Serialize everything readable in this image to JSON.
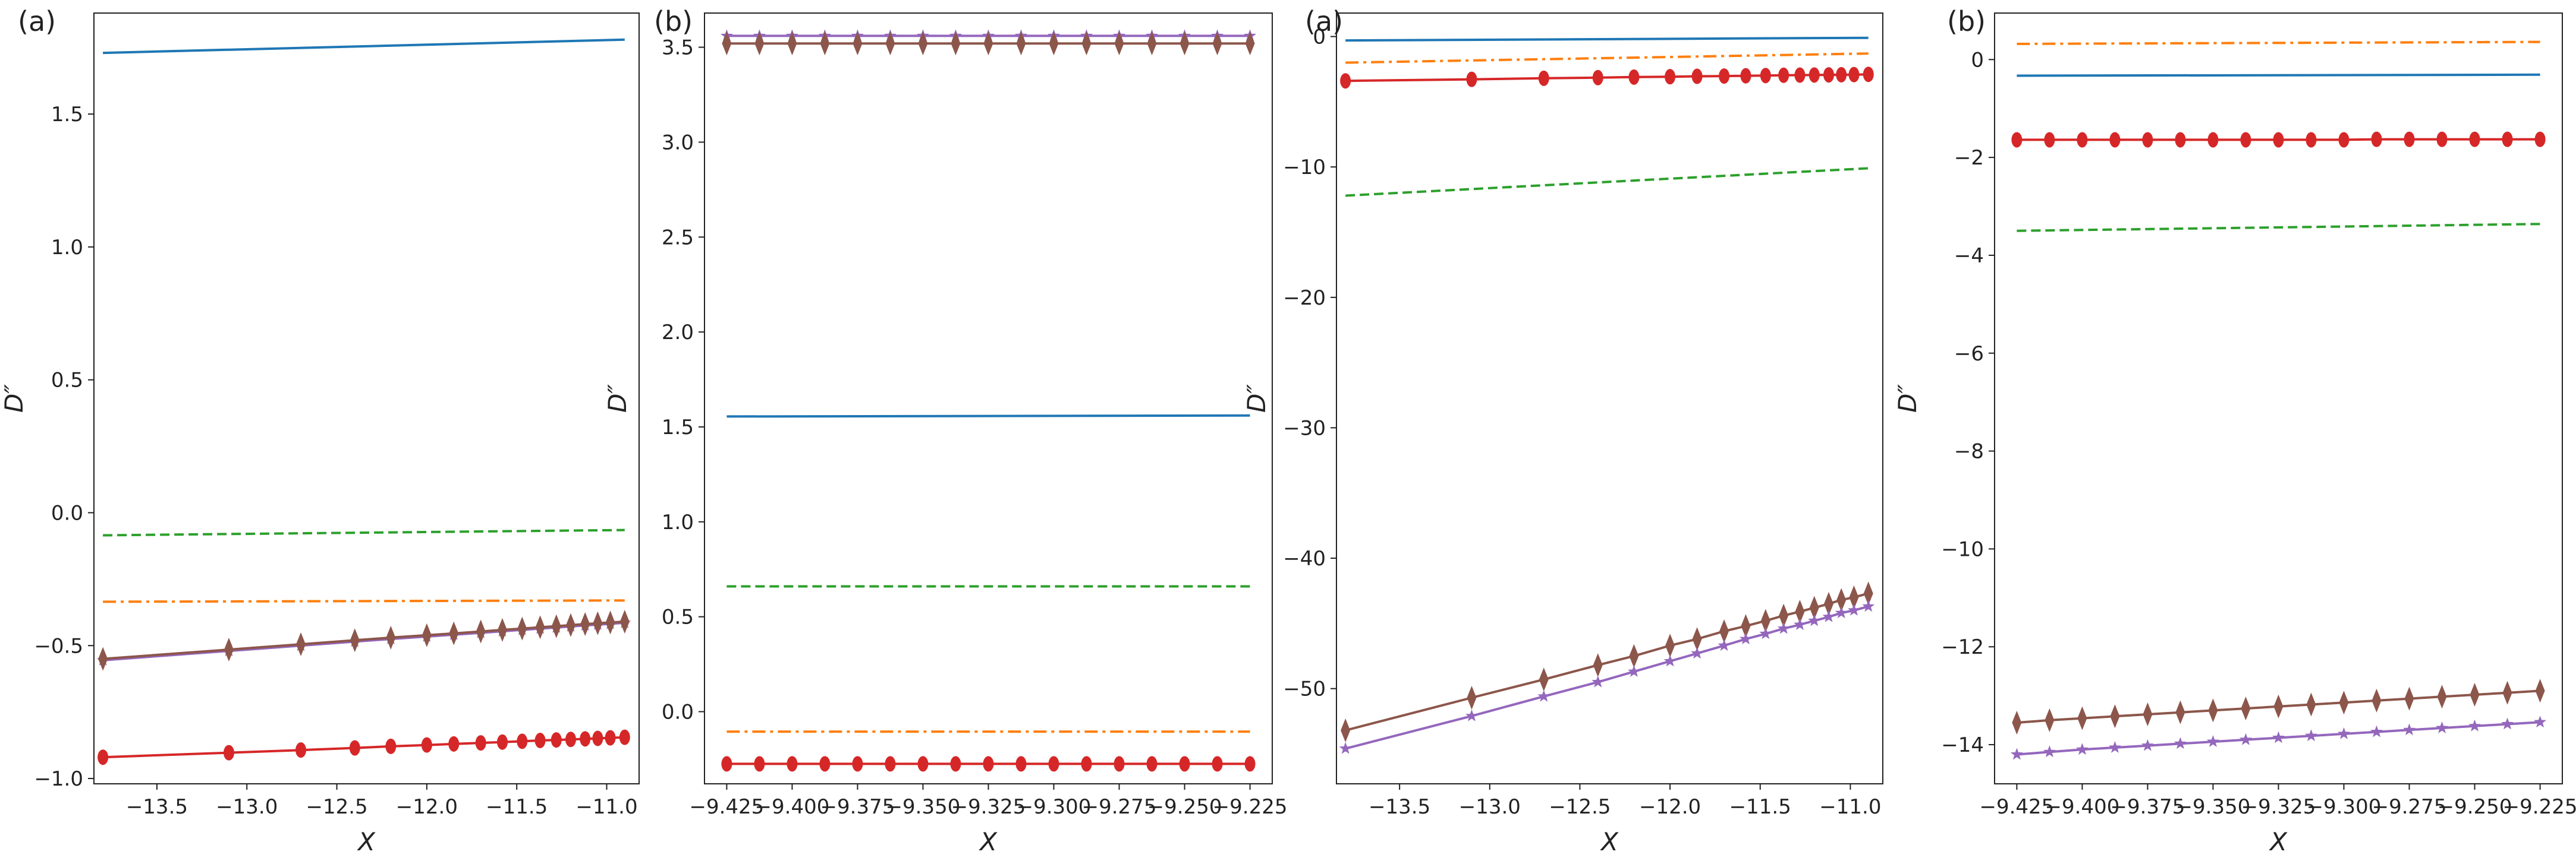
{
  "colors": {
    "blue": "#1f77b4",
    "orange": "#ff7f0e",
    "green": "#2ca02c",
    "red": "#d62728",
    "purple": "#9467bd",
    "brown": "#8c564b"
  },
  "chart_data": [
    {
      "type": "line",
      "panel_label": "(a)",
      "xlabel": "X",
      "ylabel": "D″",
      "xlim": [
        -13.85,
        -10.82
      ],
      "ylim": [
        -1.02,
        1.88
      ],
      "xticks": [
        -13.5,
        -13.0,
        -12.5,
        -12.0,
        -11.5,
        -11.0
      ],
      "xtick_labels": [
        "−13.5",
        "−13.0",
        "−12.5",
        "−12.0",
        "−11.5",
        "−11.0"
      ],
      "yticks": [
        -1.0,
        -0.5,
        0.0,
        0.5,
        1.0,
        1.5
      ],
      "ytick_labels": [
        "−1.0",
        "−0.5",
        "0.0",
        "0.5",
        "1.0",
        "1.5"
      ],
      "series": [
        {
          "name": "blue solid",
          "color": "blue",
          "style": "solid",
          "marker": "none",
          "x": [
            -13.8,
            -10.9
          ],
          "y": [
            1.73,
            1.78
          ]
        },
        {
          "name": "green dashed",
          "color": "green",
          "style": "dashed",
          "marker": "none",
          "x": [
            -13.8,
            -10.9
          ],
          "y": [
            -0.085,
            -0.065
          ]
        },
        {
          "name": "orange dashdot",
          "color": "orange",
          "style": "dashdot",
          "marker": "none",
          "x": [
            -13.8,
            -10.9
          ],
          "y": [
            -0.335,
            -0.33
          ]
        },
        {
          "name": "purple stars",
          "color": "purple",
          "style": "solid",
          "marker": "star",
          "x": [
            -13.8,
            -13.1,
            -12.7,
            -12.4,
            -12.2,
            -12.0,
            -11.85,
            -11.7,
            -11.58,
            -11.47,
            -11.37,
            -11.28,
            -11.2,
            -11.12,
            -11.05,
            -10.98,
            -10.9
          ],
          "y": [
            -0.555,
            -0.52,
            -0.5,
            -0.485,
            -0.475,
            -0.466,
            -0.459,
            -0.452,
            -0.446,
            -0.441,
            -0.436,
            -0.432,
            -0.428,
            -0.424,
            -0.421,
            -0.418,
            -0.414
          ]
        },
        {
          "name": "brown diamonds",
          "color": "brown",
          "style": "solid",
          "marker": "diamond",
          "x": [
            -13.8,
            -13.1,
            -12.7,
            -12.4,
            -12.2,
            -12.0,
            -11.85,
            -11.7,
            -11.58,
            -11.47,
            -11.37,
            -11.28,
            -11.2,
            -11.12,
            -11.05,
            -10.98,
            -10.9
          ],
          "y": [
            -0.55,
            -0.515,
            -0.495,
            -0.48,
            -0.47,
            -0.461,
            -0.454,
            -0.447,
            -0.441,
            -0.436,
            -0.431,
            -0.427,
            -0.423,
            -0.419,
            -0.416,
            -0.413,
            -0.41
          ]
        },
        {
          "name": "red circles",
          "color": "red",
          "style": "solid",
          "marker": "circle",
          "x": [
            -13.8,
            -13.1,
            -12.7,
            -12.4,
            -12.2,
            -12.0,
            -11.85,
            -11.7,
            -11.58,
            -11.47,
            -11.37,
            -11.28,
            -11.2,
            -11.12,
            -11.05,
            -10.98,
            -10.9
          ],
          "y": [
            -0.92,
            -0.903,
            -0.893,
            -0.885,
            -0.879,
            -0.874,
            -0.87,
            -0.866,
            -0.863,
            -0.86,
            -0.857,
            -0.855,
            -0.853,
            -0.851,
            -0.849,
            -0.847,
            -0.845
          ]
        }
      ]
    },
    {
      "type": "line",
      "panel_label": "(b)",
      "xlabel": "X",
      "ylabel": "D″",
      "xlim": [
        -9.4335,
        -9.2165
      ],
      "ylim": [
        -0.38,
        3.68
      ],
      "xticks": [
        -9.425,
        -9.4,
        -9.375,
        -9.35,
        -9.325,
        -9.3,
        -9.275,
        -9.25,
        -9.225
      ],
      "xtick_labels": [
        "−9.425",
        "−9.400",
        "−9.375",
        "−9.350",
        "−9.325",
        "−9.300",
        "−9.275",
        "−9.250",
        "−9.225"
      ],
      "yticks": [
        0.0,
        0.5,
        1.0,
        1.5,
        2.0,
        2.5,
        3.0,
        3.5
      ],
      "ytick_labels": [
        "0.0",
        "0.5",
        "1.0",
        "1.5",
        "2.0",
        "2.5",
        "3.0",
        "3.5"
      ],
      "series": [
        {
          "name": "purple stars",
          "color": "purple",
          "style": "solid",
          "marker": "star",
          "x": [
            -9.425,
            -9.4125,
            -9.4,
            -9.3875,
            -9.375,
            -9.3625,
            -9.35,
            -9.3375,
            -9.325,
            -9.3125,
            -9.3,
            -9.2875,
            -9.275,
            -9.2625,
            -9.25,
            -9.2375,
            -9.225
          ],
          "y": [
            3.56,
            3.56,
            3.56,
            3.56,
            3.56,
            3.56,
            3.56,
            3.56,
            3.56,
            3.56,
            3.56,
            3.56,
            3.56,
            3.56,
            3.56,
            3.56,
            3.56
          ]
        },
        {
          "name": "brown diamonds",
          "color": "brown",
          "style": "solid",
          "marker": "diamond",
          "x": [
            -9.425,
            -9.4125,
            -9.4,
            -9.3875,
            -9.375,
            -9.3625,
            -9.35,
            -9.3375,
            -9.325,
            -9.3125,
            -9.3,
            -9.2875,
            -9.275,
            -9.2625,
            -9.25,
            -9.2375,
            -9.225
          ],
          "y": [
            3.52,
            3.52,
            3.52,
            3.52,
            3.52,
            3.52,
            3.52,
            3.52,
            3.52,
            3.52,
            3.52,
            3.52,
            3.52,
            3.52,
            3.52,
            3.52,
            3.52
          ]
        },
        {
          "name": "blue solid",
          "color": "blue",
          "style": "solid",
          "marker": "none",
          "x": [
            -9.425,
            -9.225
          ],
          "y": [
            1.555,
            1.56
          ]
        },
        {
          "name": "green dashed",
          "color": "green",
          "style": "dashed",
          "marker": "none",
          "x": [
            -9.425,
            -9.225
          ],
          "y": [
            0.66,
            0.66
          ]
        },
        {
          "name": "orange dashdot",
          "color": "orange",
          "style": "dashdot",
          "marker": "none",
          "x": [
            -9.425,
            -9.225
          ],
          "y": [
            -0.105,
            -0.105
          ]
        },
        {
          "name": "red circles",
          "color": "red",
          "style": "solid",
          "marker": "circle",
          "x": [
            -9.425,
            -9.4125,
            -9.4,
            -9.3875,
            -9.375,
            -9.3625,
            -9.35,
            -9.3375,
            -9.325,
            -9.3125,
            -9.3,
            -9.2875,
            -9.275,
            -9.2625,
            -9.25,
            -9.2375,
            -9.225
          ],
          "y": [
            -0.275,
            -0.275,
            -0.275,
            -0.275,
            -0.275,
            -0.275,
            -0.275,
            -0.275,
            -0.275,
            -0.275,
            -0.275,
            -0.275,
            -0.275,
            -0.275,
            -0.275,
            -0.275,
            -0.275
          ]
        }
      ]
    },
    {
      "type": "line",
      "panel_label": "(a)",
      "xlabel": "X",
      "ylabel": "D″",
      "xlim": [
        -13.85,
        -10.82
      ],
      "ylim": [
        -57.3,
        1.8
      ],
      "xticks": [
        -13.5,
        -13.0,
        -12.5,
        -12.0,
        -11.5,
        -11.0
      ],
      "xtick_labels": [
        "−13.5",
        "−13.0",
        "−12.5",
        "−12.0",
        "−11.5",
        "−11.0"
      ],
      "yticks": [
        -50,
        -40,
        -30,
        -20,
        -10,
        0
      ],
      "ytick_labels": [
        "−50",
        "−40",
        "−30",
        "−20",
        "−10",
        "0"
      ],
      "series": [
        {
          "name": "blue solid",
          "color": "blue",
          "style": "solid",
          "marker": "none",
          "x": [
            -13.8,
            -10.9
          ],
          "y": [
            -0.3,
            -0.1
          ]
        },
        {
          "name": "orange dashdot",
          "color": "orange",
          "style": "dashdot",
          "marker": "none",
          "x": [
            -13.8,
            -10.9
          ],
          "y": [
            -2.0,
            -1.3
          ]
        },
        {
          "name": "red circles",
          "color": "red",
          "style": "solid",
          "marker": "circle",
          "x": [
            -13.8,
            -13.1,
            -12.7,
            -12.4,
            -12.2,
            -12.0,
            -11.85,
            -11.7,
            -11.58,
            -11.47,
            -11.37,
            -11.28,
            -11.2,
            -11.12,
            -11.05,
            -10.98,
            -10.9
          ],
          "y": [
            -3.4,
            -3.28,
            -3.2,
            -3.15,
            -3.11,
            -3.08,
            -3.05,
            -3.03,
            -3.01,
            -2.99,
            -2.97,
            -2.96,
            -2.95,
            -2.94,
            -2.93,
            -2.92,
            -2.9
          ]
        },
        {
          "name": "green dashed",
          "color": "green",
          "style": "dashed",
          "marker": "none",
          "x": [
            -13.8,
            -10.9
          ],
          "y": [
            -12.2,
            -10.1
          ]
        },
        {
          "name": "brown diamonds",
          "color": "brown",
          "style": "solid",
          "marker": "diamond",
          "x": [
            -13.8,
            -13.1,
            -12.7,
            -12.4,
            -12.2,
            -12.0,
            -11.85,
            -11.7,
            -11.58,
            -11.47,
            -11.37,
            -11.28,
            -11.2,
            -11.12,
            -11.05,
            -10.98,
            -10.9
          ],
          "y": [
            -53.2,
            -50.7,
            -49.3,
            -48.2,
            -47.5,
            -46.7,
            -46.2,
            -45.6,
            -45.2,
            -44.8,
            -44.4,
            -44.1,
            -43.8,
            -43.5,
            -43.2,
            -43.0,
            -42.7
          ]
        },
        {
          "name": "purple stars",
          "color": "purple",
          "style": "solid",
          "marker": "star",
          "x": [
            -13.8,
            -13.1,
            -12.7,
            -12.4,
            -12.2,
            -12.0,
            -11.85,
            -11.7,
            -11.58,
            -11.47,
            -11.37,
            -11.28,
            -11.2,
            -11.12,
            -11.05,
            -10.98,
            -10.9
          ],
          "y": [
            -54.6,
            -52.1,
            -50.6,
            -49.5,
            -48.7,
            -47.9,
            -47.3,
            -46.7,
            -46.2,
            -45.8,
            -45.4,
            -45.1,
            -44.8,
            -44.5,
            -44.2,
            -44.0,
            -43.7
          ]
        }
      ]
    },
    {
      "type": "line",
      "panel_label": "(b)",
      "xlabel": "X",
      "ylabel": "D″",
      "xlim": [
        -9.4335,
        -9.2165
      ],
      "ylim": [
        -14.8,
        0.95
      ],
      "xticks": [
        -9.425,
        -9.4,
        -9.375,
        -9.35,
        -9.325,
        -9.3,
        -9.275,
        -9.25,
        -9.225
      ],
      "xtick_labels": [
        "−9.425",
        "−9.400",
        "−9.375",
        "−9.350",
        "−9.325",
        "−9.300",
        "−9.275",
        "−9.250",
        "−9.225"
      ],
      "yticks": [
        -14,
        -12,
        -10,
        -8,
        -6,
        -4,
        -2,
        0
      ],
      "ytick_labels": [
        "−14",
        "−12",
        "−10",
        "−8",
        "−6",
        "−4",
        "−2",
        "0"
      ],
      "series": [
        {
          "name": "orange dashdot",
          "color": "orange",
          "style": "dashdot",
          "marker": "none",
          "x": [
            -9.425,
            -9.225
          ],
          "y": [
            0.32,
            0.36
          ]
        },
        {
          "name": "blue solid",
          "color": "blue",
          "style": "solid",
          "marker": "none",
          "x": [
            -9.425,
            -9.225
          ],
          "y": [
            -0.33,
            -0.31
          ]
        },
        {
          "name": "red circles",
          "color": "red",
          "style": "solid",
          "marker": "circle",
          "x": [
            -9.425,
            -9.4125,
            -9.4,
            -9.3875,
            -9.375,
            -9.3625,
            -9.35,
            -9.3375,
            -9.325,
            -9.3125,
            -9.3,
            -9.2875,
            -9.275,
            -9.2625,
            -9.25,
            -9.2375,
            -9.225
          ],
          "y": [
            -1.64,
            -1.64,
            -1.64,
            -1.64,
            -1.64,
            -1.64,
            -1.64,
            -1.64,
            -1.64,
            -1.64,
            -1.64,
            -1.63,
            -1.63,
            -1.63,
            -1.63,
            -1.63,
            -1.63
          ]
        },
        {
          "name": "green dashed",
          "color": "green",
          "style": "dashed",
          "marker": "none",
          "x": [
            -9.425,
            -9.225
          ],
          "y": [
            -3.5,
            -3.36
          ]
        },
        {
          "name": "brown diamonds",
          "color": "brown",
          "style": "solid",
          "marker": "diamond",
          "x": [
            -9.425,
            -9.4125,
            -9.4,
            -9.3875,
            -9.375,
            -9.3625,
            -9.35,
            -9.3375,
            -9.325,
            -9.3125,
            -9.3,
            -9.2875,
            -9.275,
            -9.2625,
            -9.25,
            -9.2375,
            -9.225
          ],
          "y": [
            -13.55,
            -13.5,
            -13.46,
            -13.42,
            -13.38,
            -13.34,
            -13.3,
            -13.26,
            -13.22,
            -13.18,
            -13.14,
            -13.1,
            -13.06,
            -13.02,
            -12.98,
            -12.94,
            -12.9
          ]
        },
        {
          "name": "purple stars",
          "color": "purple",
          "style": "solid",
          "marker": "star",
          "x": [
            -9.425,
            -9.4125,
            -9.4,
            -9.3875,
            -9.375,
            -9.3625,
            -9.35,
            -9.3375,
            -9.325,
            -9.3125,
            -9.3,
            -9.2875,
            -9.275,
            -9.2625,
            -9.25,
            -9.2375,
            -9.225
          ],
          "y": [
            -14.2,
            -14.15,
            -14.1,
            -14.06,
            -14.02,
            -13.98,
            -13.94,
            -13.9,
            -13.86,
            -13.82,
            -13.78,
            -13.74,
            -13.7,
            -13.66,
            -13.62,
            -13.58,
            -13.54
          ]
        }
      ]
    }
  ]
}
